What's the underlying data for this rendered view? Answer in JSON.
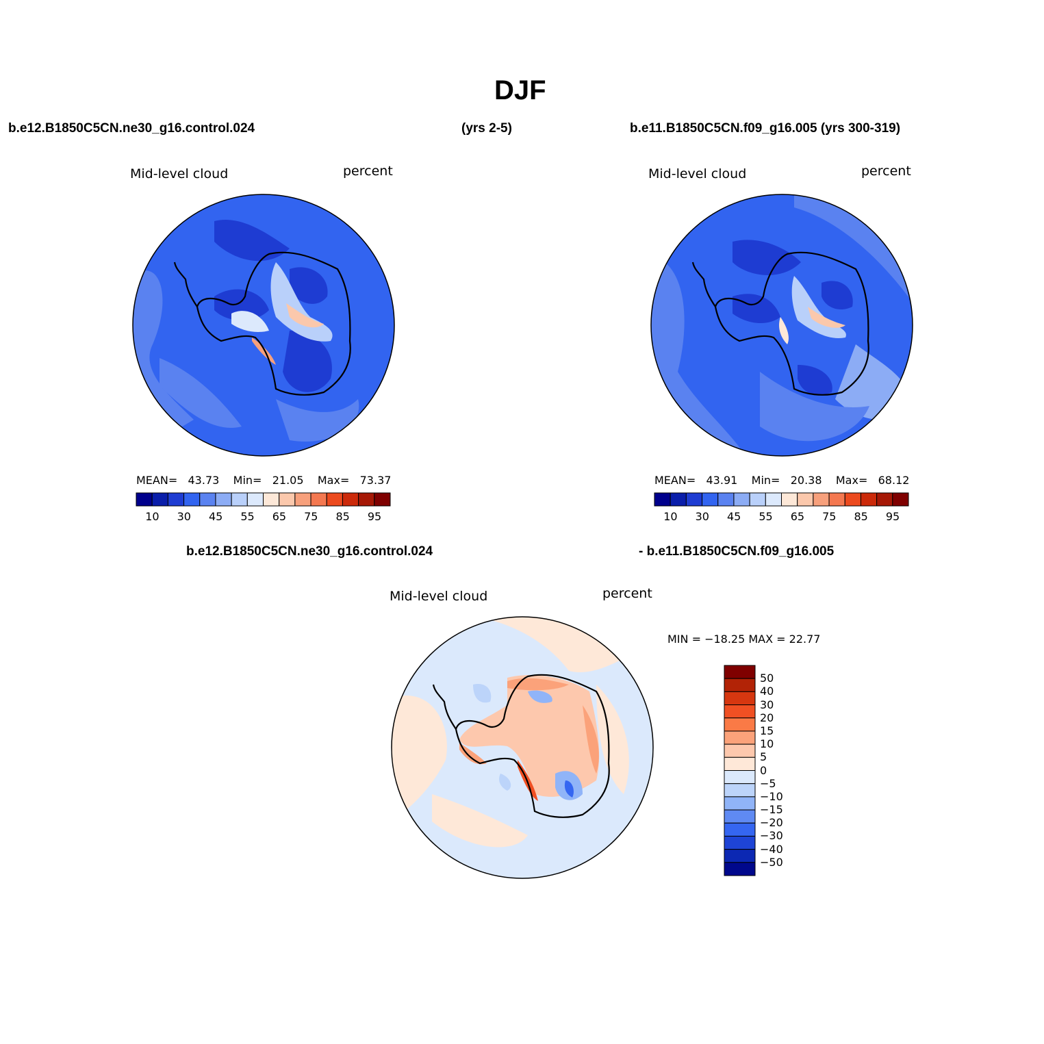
{
  "title": "DJF",
  "header": {
    "case1": "b.e12.B1850C5CN.ne30_g16.control.024",
    "years1": "(yrs 2-5)",
    "case2": "b.e11.B1850C5CN.f09_g16.005 (yrs 300-319)",
    "diff_case1": "b.e12.B1850C5CN.ne30_g16.control.024",
    "diff_case2": "- b.e11.B1850C5CN.f09_g16.005"
  },
  "panels": [
    {
      "variable": "Mid-level cloud",
      "units": "percent",
      "mean_label": "MEAN=",
      "mean": "43.73",
      "min_label": "Min=",
      "min": "21.05",
      "max_label": "Max=",
      "max": "73.37"
    },
    {
      "variable": "Mid-level cloud",
      "units": "percent",
      "mean_label": "MEAN=",
      "mean": "43.91",
      "min_label": "Min=",
      "min": "20.38",
      "max_label": "Max=",
      "max": "68.12"
    }
  ],
  "diff_panel": {
    "variable": "Mid-level cloud",
    "units": "percent",
    "minmax": "MIN = −18.25 MAX =  22.77"
  },
  "colorbar_abs": {
    "colors": [
      "#00008c",
      "#0a1eaa",
      "#1e3cd2",
      "#3264f0",
      "#5a82f0",
      "#8cacf5",
      "#b9d0fa",
      "#dce9fc",
      "#fde8d8",
      "#fbc8ac",
      "#f7a07c",
      "#f47850",
      "#ec4a1e",
      "#cc2a0a",
      "#a61806",
      "#7f0000"
    ],
    "tick_labels": [
      "10",
      "30",
      "45",
      "55",
      "65",
      "75",
      "85",
      "95"
    ]
  },
  "colorbar_diff": {
    "colors": [
      "#7f0000",
      "#b22306",
      "#d63710",
      "#f05023",
      "#fa7a46",
      "#fba27a",
      "#fdc8ad",
      "#fee8d8",
      "#dbe9fc",
      "#bcd4fa",
      "#90b4f8",
      "#5f8af3",
      "#3566f1",
      "#1e44d6",
      "#0c28b3",
      "#00088c"
    ],
    "tick_labels": [
      "50",
      "40",
      "30",
      "20",
      "15",
      "10",
      "5",
      "0",
      "−5",
      "−10",
      "−15",
      "−20",
      "−30",
      "−40",
      "−50"
    ]
  }
}
